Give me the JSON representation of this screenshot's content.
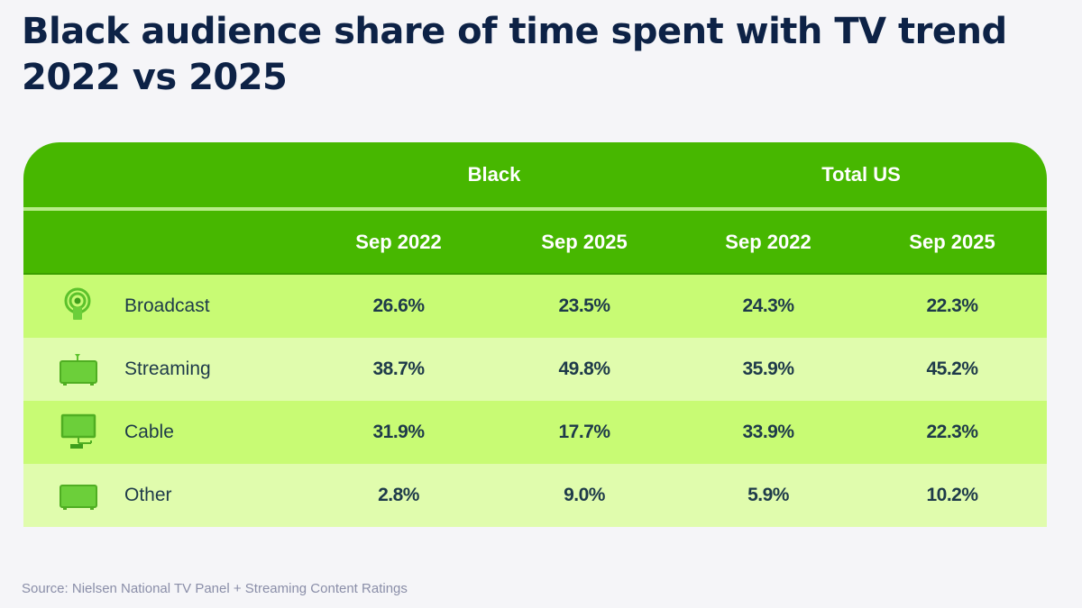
{
  "title": "Black audience share of time spent with TV trend 2022 vs 2025",
  "table": {
    "groups": [
      "Black",
      "Total US"
    ],
    "columns": [
      "Sep 2022",
      "Sep 2025",
      "Sep 2022",
      "Sep 2025"
    ],
    "rows": [
      {
        "label": "Broadcast",
        "icon": "broadcast-antenna-icon",
        "values": [
          "26.6%",
          "23.5%",
          "24.3%",
          "22.3%"
        ]
      },
      {
        "label": "Streaming",
        "icon": "streaming-box-icon",
        "values": [
          "38.7%",
          "49.8%",
          "35.9%",
          "45.2%"
        ]
      },
      {
        "label": "Cable",
        "icon": "cable-tv-icon",
        "values": [
          "31.9%",
          "17.7%",
          "33.9%",
          "22.3%"
        ]
      },
      {
        "label": "Other",
        "icon": "other-device-icon",
        "values": [
          "2.8%",
          "9.0%",
          "5.9%",
          "10.2%"
        ]
      }
    ]
  },
  "source": "Source: Nielsen National TV Panel + Streaming Content Ratings",
  "colors": {
    "title": "#0d2246",
    "header": "#47b700",
    "row_dark": "#c8fb74",
    "row_light": "#e0fcad",
    "icon": "#5cc22c"
  }
}
